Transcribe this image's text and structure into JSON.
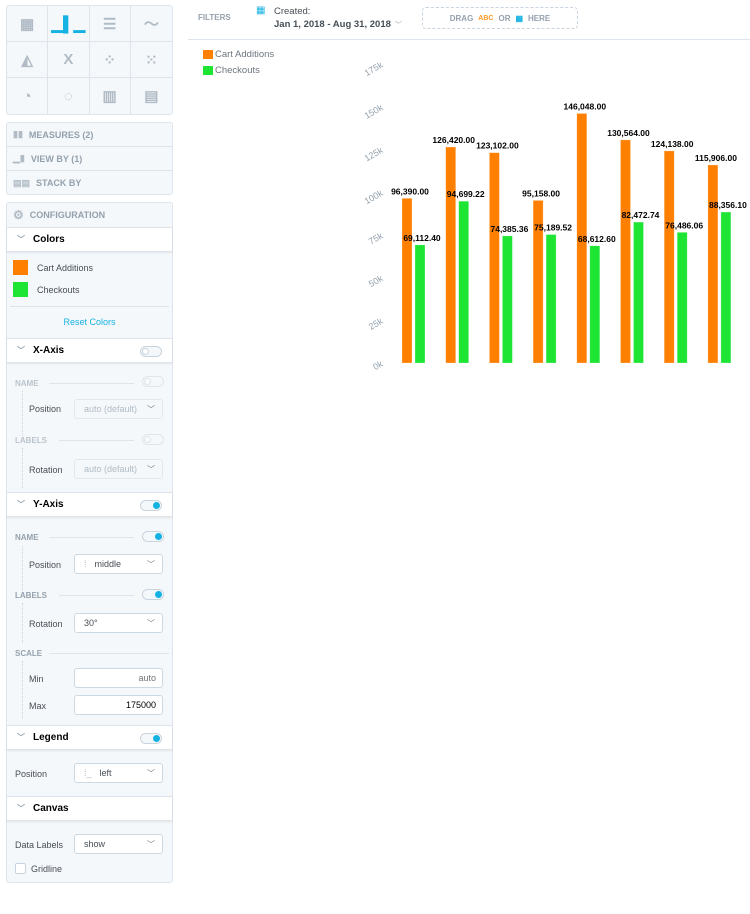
{
  "chart_types": [
    {
      "name": "table",
      "active": false
    },
    {
      "name": "column",
      "active": true
    },
    {
      "name": "bar",
      "active": false
    },
    {
      "name": "line",
      "active": false
    },
    {
      "name": "area",
      "active": false
    },
    {
      "name": "headline",
      "active": false
    },
    {
      "name": "scatter",
      "active": false
    },
    {
      "name": "bubble",
      "active": false
    },
    {
      "name": "pie",
      "active": false
    },
    {
      "name": "donut",
      "active": false
    },
    {
      "name": "treemap",
      "active": false
    },
    {
      "name": "heatmap",
      "active": false
    }
  ],
  "buckets": {
    "measures": "MEASURES (2)",
    "view_by": "VIEW BY (1)",
    "stack_by": "STACK BY"
  },
  "config": {
    "title": "CONFIGURATION",
    "colors": {
      "title": "Colors",
      "items": [
        {
          "label": "Cart Additions",
          "color": "#ff7f00"
        },
        {
          "label": "Checkouts",
          "color": "#1ee534"
        }
      ],
      "reset": "Reset Colors"
    },
    "x_axis": {
      "title": "X-Axis",
      "enabled": false,
      "name_cap": "NAME",
      "position_label": "Position",
      "position_value": "auto (default)",
      "labels_cap": "LABELS",
      "rotation_label": "Rotation",
      "rotation_value": "auto (default)"
    },
    "y_axis": {
      "title": "Y-Axis",
      "enabled": true,
      "name_cap": "NAME",
      "position_label": "Position",
      "position_value": "middle",
      "labels_cap": "LABELS",
      "rotation_label": "Rotation",
      "rotation_value": "30°",
      "scale_cap": "SCALE",
      "min_label": "Min",
      "min_placeholder": "auto",
      "max_label": "Max",
      "max_value": "175000"
    },
    "legend": {
      "title": "Legend",
      "enabled": true,
      "position_label": "Position",
      "position_value": "left"
    },
    "canvas": {
      "title": "Canvas",
      "data_labels_label": "Data Labels",
      "data_labels_value": "show",
      "gridline_label": "Gridline",
      "gridline_checked": false
    }
  },
  "filters": {
    "label": "FILTERS",
    "date_caption": "Created:",
    "date_range": "Jan 1, 2018 - Aug 31, 2018",
    "drop_drag": "DRAG",
    "drop_abc": "ABC",
    "drop_or": "OR",
    "drop_here": "HERE"
  },
  "chart_data": {
    "type": "bar",
    "legend_position": "top-left",
    "grid": false,
    "ylim": [
      0,
      175000
    ],
    "yticks": [
      "0k",
      "25k",
      "50k",
      "75k",
      "100k",
      "125k",
      "150k",
      "175k"
    ],
    "ytick_rotation": -30,
    "series": [
      {
        "name": "Cart Additions",
        "color": "#ff7f00",
        "values": [
          96390.0,
          126420.0,
          123102.0,
          95158.0,
          146048.0,
          130564.0,
          124138.0,
          115906.0
        ],
        "labels": [
          "96,390.00",
          "126,420.00",
          "123,102.00",
          "95,158.00",
          "146,048.00",
          "130,564.00",
          "124,138.00",
          "115,906.00"
        ]
      },
      {
        "name": "Checkouts",
        "color": "#1ee534",
        "values": [
          69112.4,
          94699.22,
          74385.36,
          75189.52,
          68612.6,
          82472.74,
          76486.06,
          88356.1
        ],
        "labels": [
          "69,112.40",
          "94,699.22",
          "74,385.36",
          "75,189.52",
          "68,612.60",
          "82,472.74",
          "76,486.06",
          "88,356.10"
        ]
      }
    ]
  }
}
